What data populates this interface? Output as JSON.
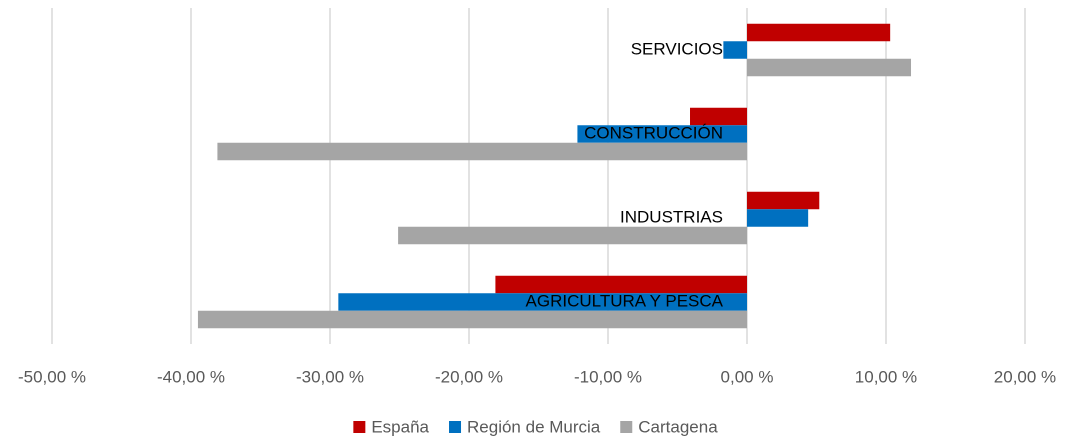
{
  "chart_data": {
    "type": "hbar",
    "categories": [
      "SERVICIOS",
      "CONSTRUCCIÓN",
      "INDUSTRIAS",
      "AGRICULTURA Y PESCA"
    ],
    "series": [
      {
        "name": "España",
        "color": "#c00000",
        "values": [
          10.3,
          -4.1,
          5.2,
          -18.1
        ]
      },
      {
        "name": "Región de Murcia",
        "color": "#0070c0",
        "values": [
          -1.7,
          -12.2,
          4.4,
          -29.4
        ]
      },
      {
        "name": "Cartagena",
        "color": "#a5a5a5",
        "values": [
          11.8,
          -38.1,
          -25.1,
          -39.5
        ]
      }
    ],
    "xlim": [
      -50,
      20
    ],
    "xticks": [
      {
        "value": -50,
        "label": "-50,00 %"
      },
      {
        "value": -40,
        "label": "-40,00 %"
      },
      {
        "value": -30,
        "label": "-30,00 %"
      },
      {
        "value": -20,
        "label": "-20,00 %"
      },
      {
        "value": -10,
        "label": "-10,00 %"
      },
      {
        "value": 0,
        "label": "0,00 %"
      },
      {
        "value": 10,
        "label": "10,00 %"
      },
      {
        "value": 20,
        "label": "20,00 %"
      }
    ],
    "grid": true,
    "legend": "bottom"
  }
}
